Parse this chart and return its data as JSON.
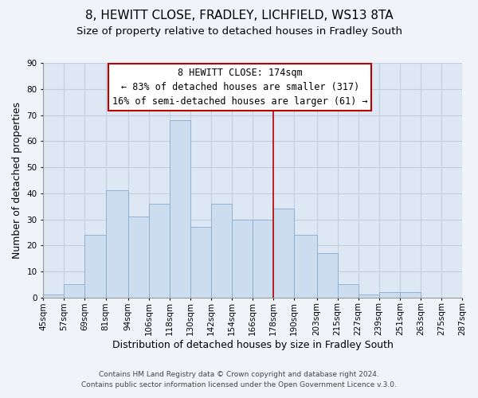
{
  "title": "8, HEWITT CLOSE, FRADLEY, LICHFIELD, WS13 8TA",
  "subtitle": "Size of property relative to detached houses in Fradley South",
  "xlabel": "Distribution of detached houses by size in Fradley South",
  "ylabel": "Number of detached properties",
  "footer_line1": "Contains HM Land Registry data © Crown copyright and database right 2024.",
  "footer_line2": "Contains public sector information licensed under the Open Government Licence v.3.0.",
  "bin_edges": [
    45,
    57,
    69,
    81,
    94,
    106,
    118,
    130,
    142,
    154,
    166,
    178,
    190,
    203,
    215,
    227,
    239,
    251,
    263,
    275,
    287
  ],
  "bar_heights": [
    1,
    5,
    24,
    41,
    31,
    36,
    68,
    27,
    36,
    30,
    30,
    34,
    24,
    17,
    5,
    1,
    2,
    2,
    0,
    0
  ],
  "bar_color": "#ccddf0",
  "bar_edgecolor": "#88aacc",
  "reference_line_x": 178,
  "reference_line_color": "#bb0000",
  "ylim": [
    0,
    90
  ],
  "yticks": [
    0,
    10,
    20,
    30,
    40,
    50,
    60,
    70,
    80,
    90
  ],
  "annotation_title": "8 HEWITT CLOSE: 174sqm",
  "annotation_line1": "← 83% of detached houses are smaller (317)",
  "annotation_line2": "16% of semi-detached houses are larger (61) →",
  "grid_color": "#c0d0e0",
  "background_color": "#dde8f4",
  "fig_background": "#f0f4f8",
  "title_fontsize": 11,
  "subtitle_fontsize": 9.5,
  "axis_label_fontsize": 9,
  "tick_fontsize": 7.5,
  "annotation_fontsize": 8.5,
  "footer_fontsize": 6.5
}
